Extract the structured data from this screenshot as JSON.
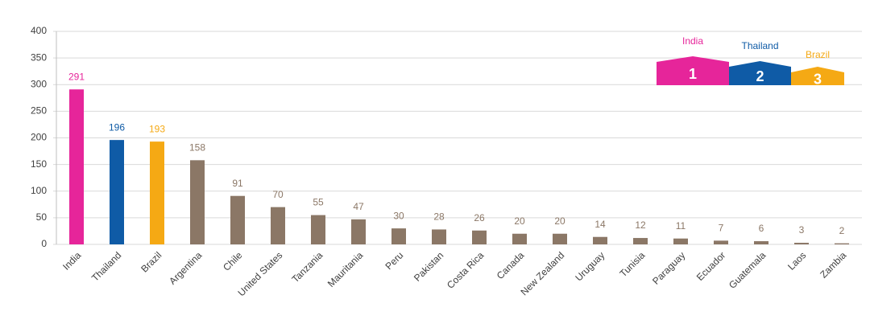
{
  "chart_data": {
    "type": "bar",
    "categories": [
      "India",
      "Thailand",
      "Brazil",
      "Argentina",
      "Chile",
      "United States",
      "Tanzania",
      "Mauritania",
      "Peru",
      "Pakistan",
      "Costa Rica",
      "Canada",
      "New Zealand",
      "Uruguay",
      "Tunisia",
      "Paraguay",
      "Ecuador",
      "Guatemala",
      "Laos",
      "Zambia"
    ],
    "values": [
      291,
      196,
      193,
      158,
      91,
      70,
      55,
      47,
      30,
      28,
      26,
      20,
      20,
      14,
      12,
      11,
      7,
      6,
      3,
      2
    ],
    "colors": [
      "#e6259a",
      "#0f5ba6",
      "#f5a914",
      "#8b7766",
      "#8b7766",
      "#8b7766",
      "#8b7766",
      "#8b7766",
      "#8b7766",
      "#8b7766",
      "#8b7766",
      "#8b7766",
      "#8b7766",
      "#8b7766",
      "#8b7766",
      "#8b7766",
      "#8b7766",
      "#8b7766",
      "#8b7766",
      "#8b7766"
    ],
    "ylim": [
      0,
      400
    ],
    "yticks": [
      0,
      50,
      100,
      150,
      200,
      250,
      300,
      350,
      400
    ],
    "grid": true,
    "podium": [
      {
        "name": "India",
        "rank": 1,
        "color": "#e6259a"
      },
      {
        "name": "Thailand",
        "rank": 2,
        "color": "#0f5ba6"
      },
      {
        "name": "Brazil",
        "rank": 3,
        "color": "#f5a914"
      }
    ]
  }
}
